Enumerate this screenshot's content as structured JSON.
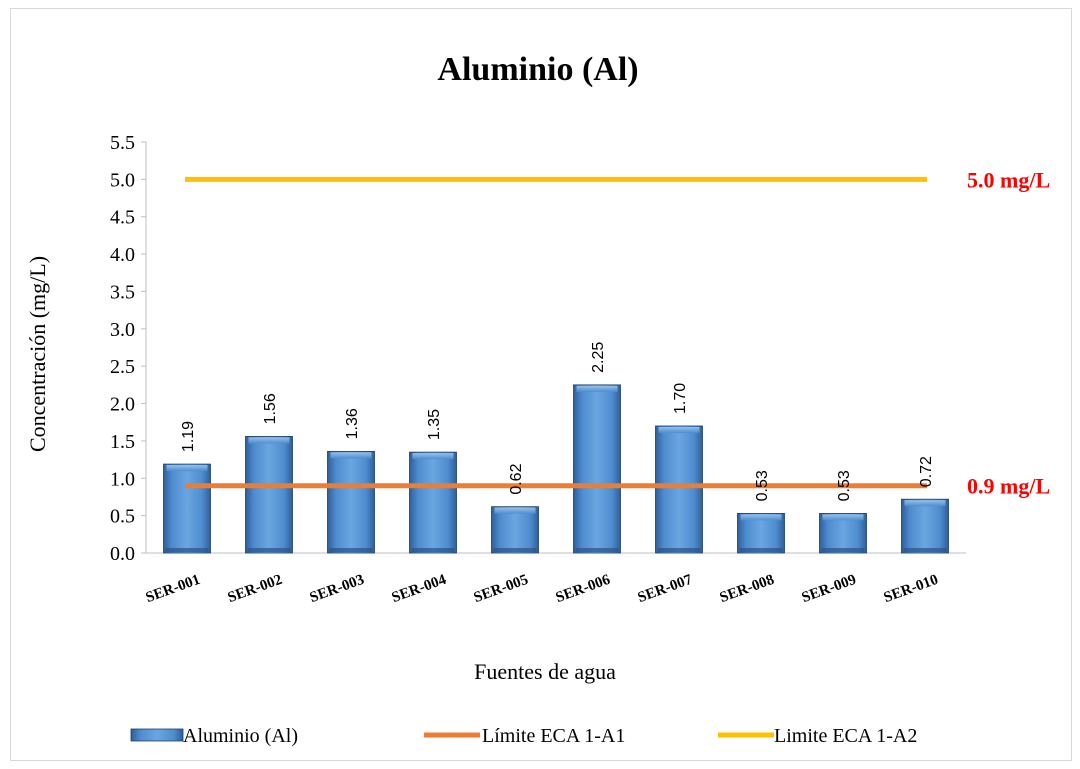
{
  "chart_data": {
    "type": "bar",
    "title": "Aluminio (Al)",
    "xlabel": "Fuentes de agua",
    "ylabel": "Concentración (mg/L)",
    "ylim": [
      0,
      5.5
    ],
    "yticks": [
      "0.0",
      "0.5",
      "1.0",
      "1.5",
      "2.0",
      "2.5",
      "3.0",
      "3.5",
      "4.0",
      "4.5",
      "5.0",
      "5.5"
    ],
    "categories": [
      "SER-001",
      "SER-002",
      "SER-003",
      "SER-004",
      "SER-005",
      "SER-006",
      "SER-007",
      "SER-008",
      "SER-009",
      "SER-010"
    ],
    "series": [
      {
        "name": "Aluminio (Al)",
        "type": "bar",
        "color": "#4a86c8",
        "values": [
          1.19,
          1.56,
          1.36,
          1.35,
          0.62,
          2.25,
          1.7,
          0.53,
          0.53,
          0.72
        ],
        "labels": [
          "1.19",
          "1.56",
          "1.36",
          "1.35",
          "0.62",
          "2.25",
          "1.70",
          "0.53",
          "0.53",
          "0.72"
        ]
      },
      {
        "name": "Límite ECA 1-A1",
        "type": "line",
        "color": "#ed7d31",
        "value": 0.9,
        "annotation": "0.9 mg/L"
      },
      {
        "name": "Limite ECA 1-A2",
        "type": "line",
        "color": "#ffc000",
        "value": 5.0,
        "annotation": "5.0 mg/L"
      }
    ],
    "annotation_color": "#ff0000",
    "legend_position": "bottom",
    "grid": false
  }
}
